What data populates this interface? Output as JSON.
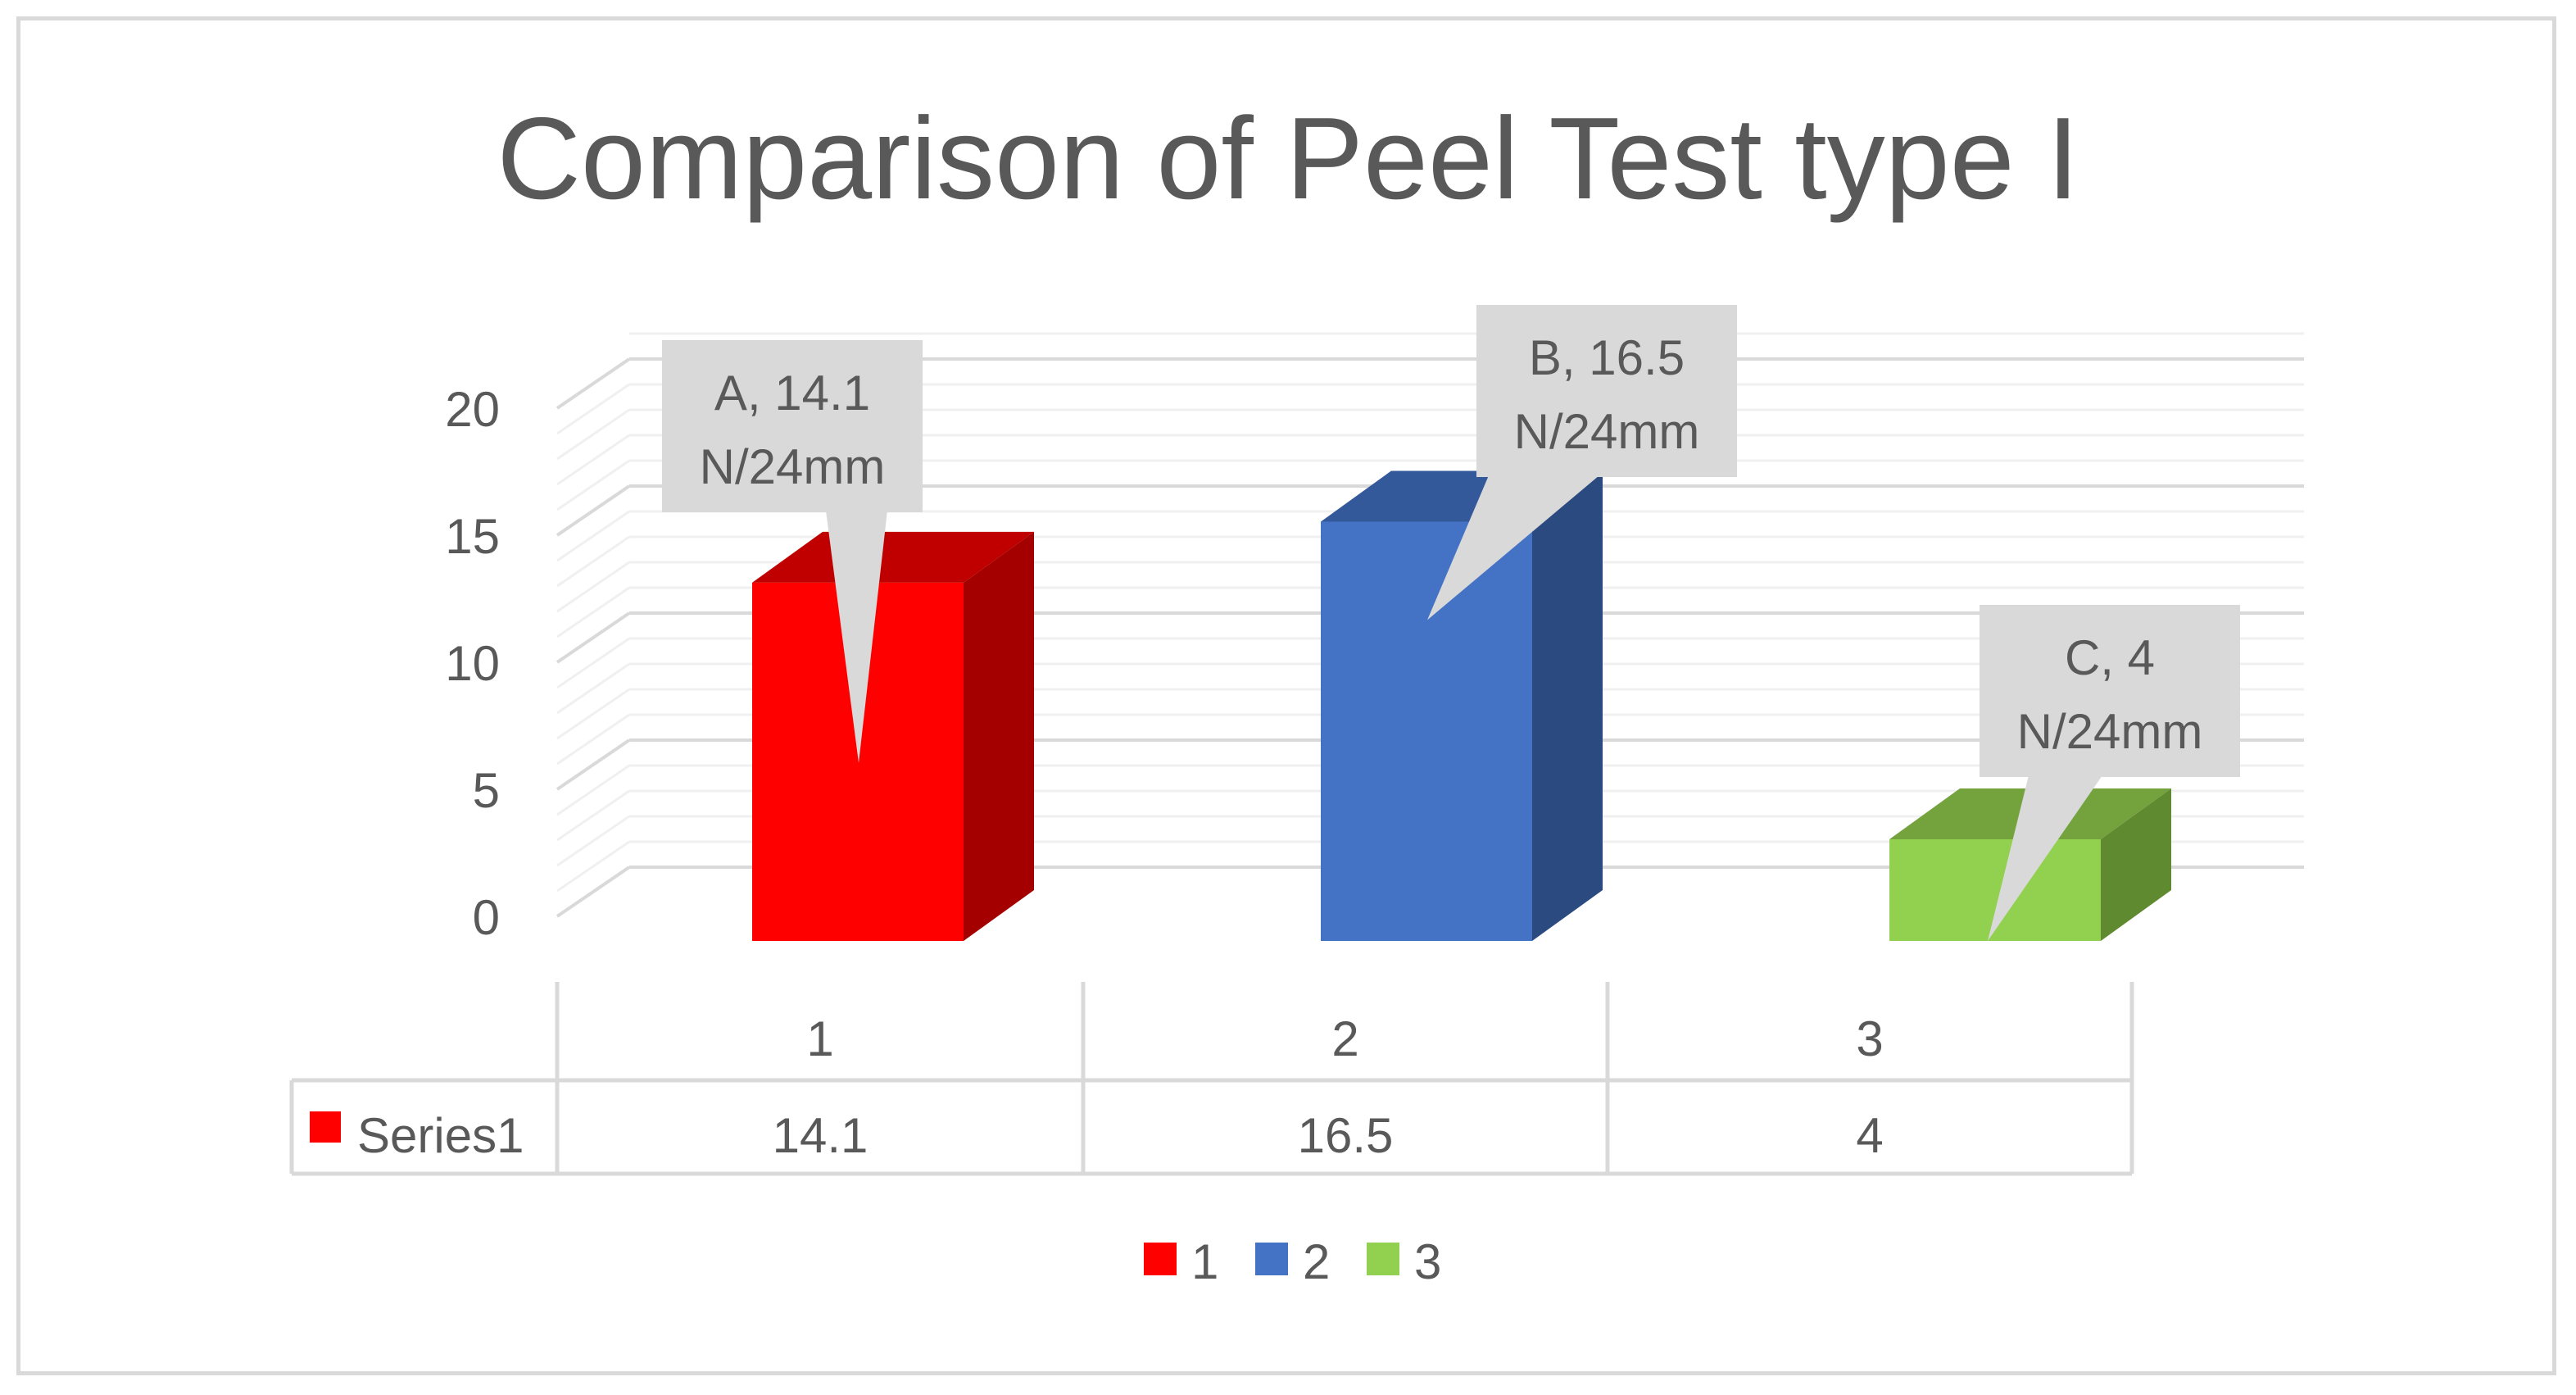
{
  "chart_data": {
    "type": "bar",
    "style": "3d-column",
    "title": "Comparison of Peel Test type I",
    "categories": [
      "1",
      "2",
      "3"
    ],
    "series": [
      {
        "name": "Series1",
        "values": [
          14.1,
          16.5,
          4
        ]
      }
    ],
    "point_colors": [
      {
        "front": "#ff0000",
        "side": "#a50000",
        "top": "#c00000"
      },
      {
        "front": "#4472c4",
        "side": "#2a4a80",
        "top": "#33599b"
      },
      {
        "front": "#92d050",
        "side": "#5f8a30",
        "top": "#74a33e"
      }
    ],
    "ylim": [
      0,
      20
    ],
    "yticks": [
      "0",
      "5",
      "10",
      "15",
      "20"
    ],
    "grid": true,
    "callouts": [
      {
        "line1": "A, 14.1",
        "line2": "N/24mm"
      },
      {
        "line1": "B, 16.5",
        "line2": "N/24mm"
      },
      {
        "line1": "C, 4",
        "line2": "N/24mm"
      }
    ],
    "data_table": {
      "series_label": "Series1",
      "values": [
        "14.1",
        "16.5",
        "4"
      ],
      "key_color": "#ff0000"
    },
    "legend": {
      "position": "bottom",
      "entries": [
        {
          "label": "1",
          "color": "#ff0000"
        },
        {
          "label": "2",
          "color": "#4472c4"
        },
        {
          "label": "3",
          "color": "#92d050"
        }
      ]
    },
    "xlabel": "",
    "ylabel": ""
  }
}
